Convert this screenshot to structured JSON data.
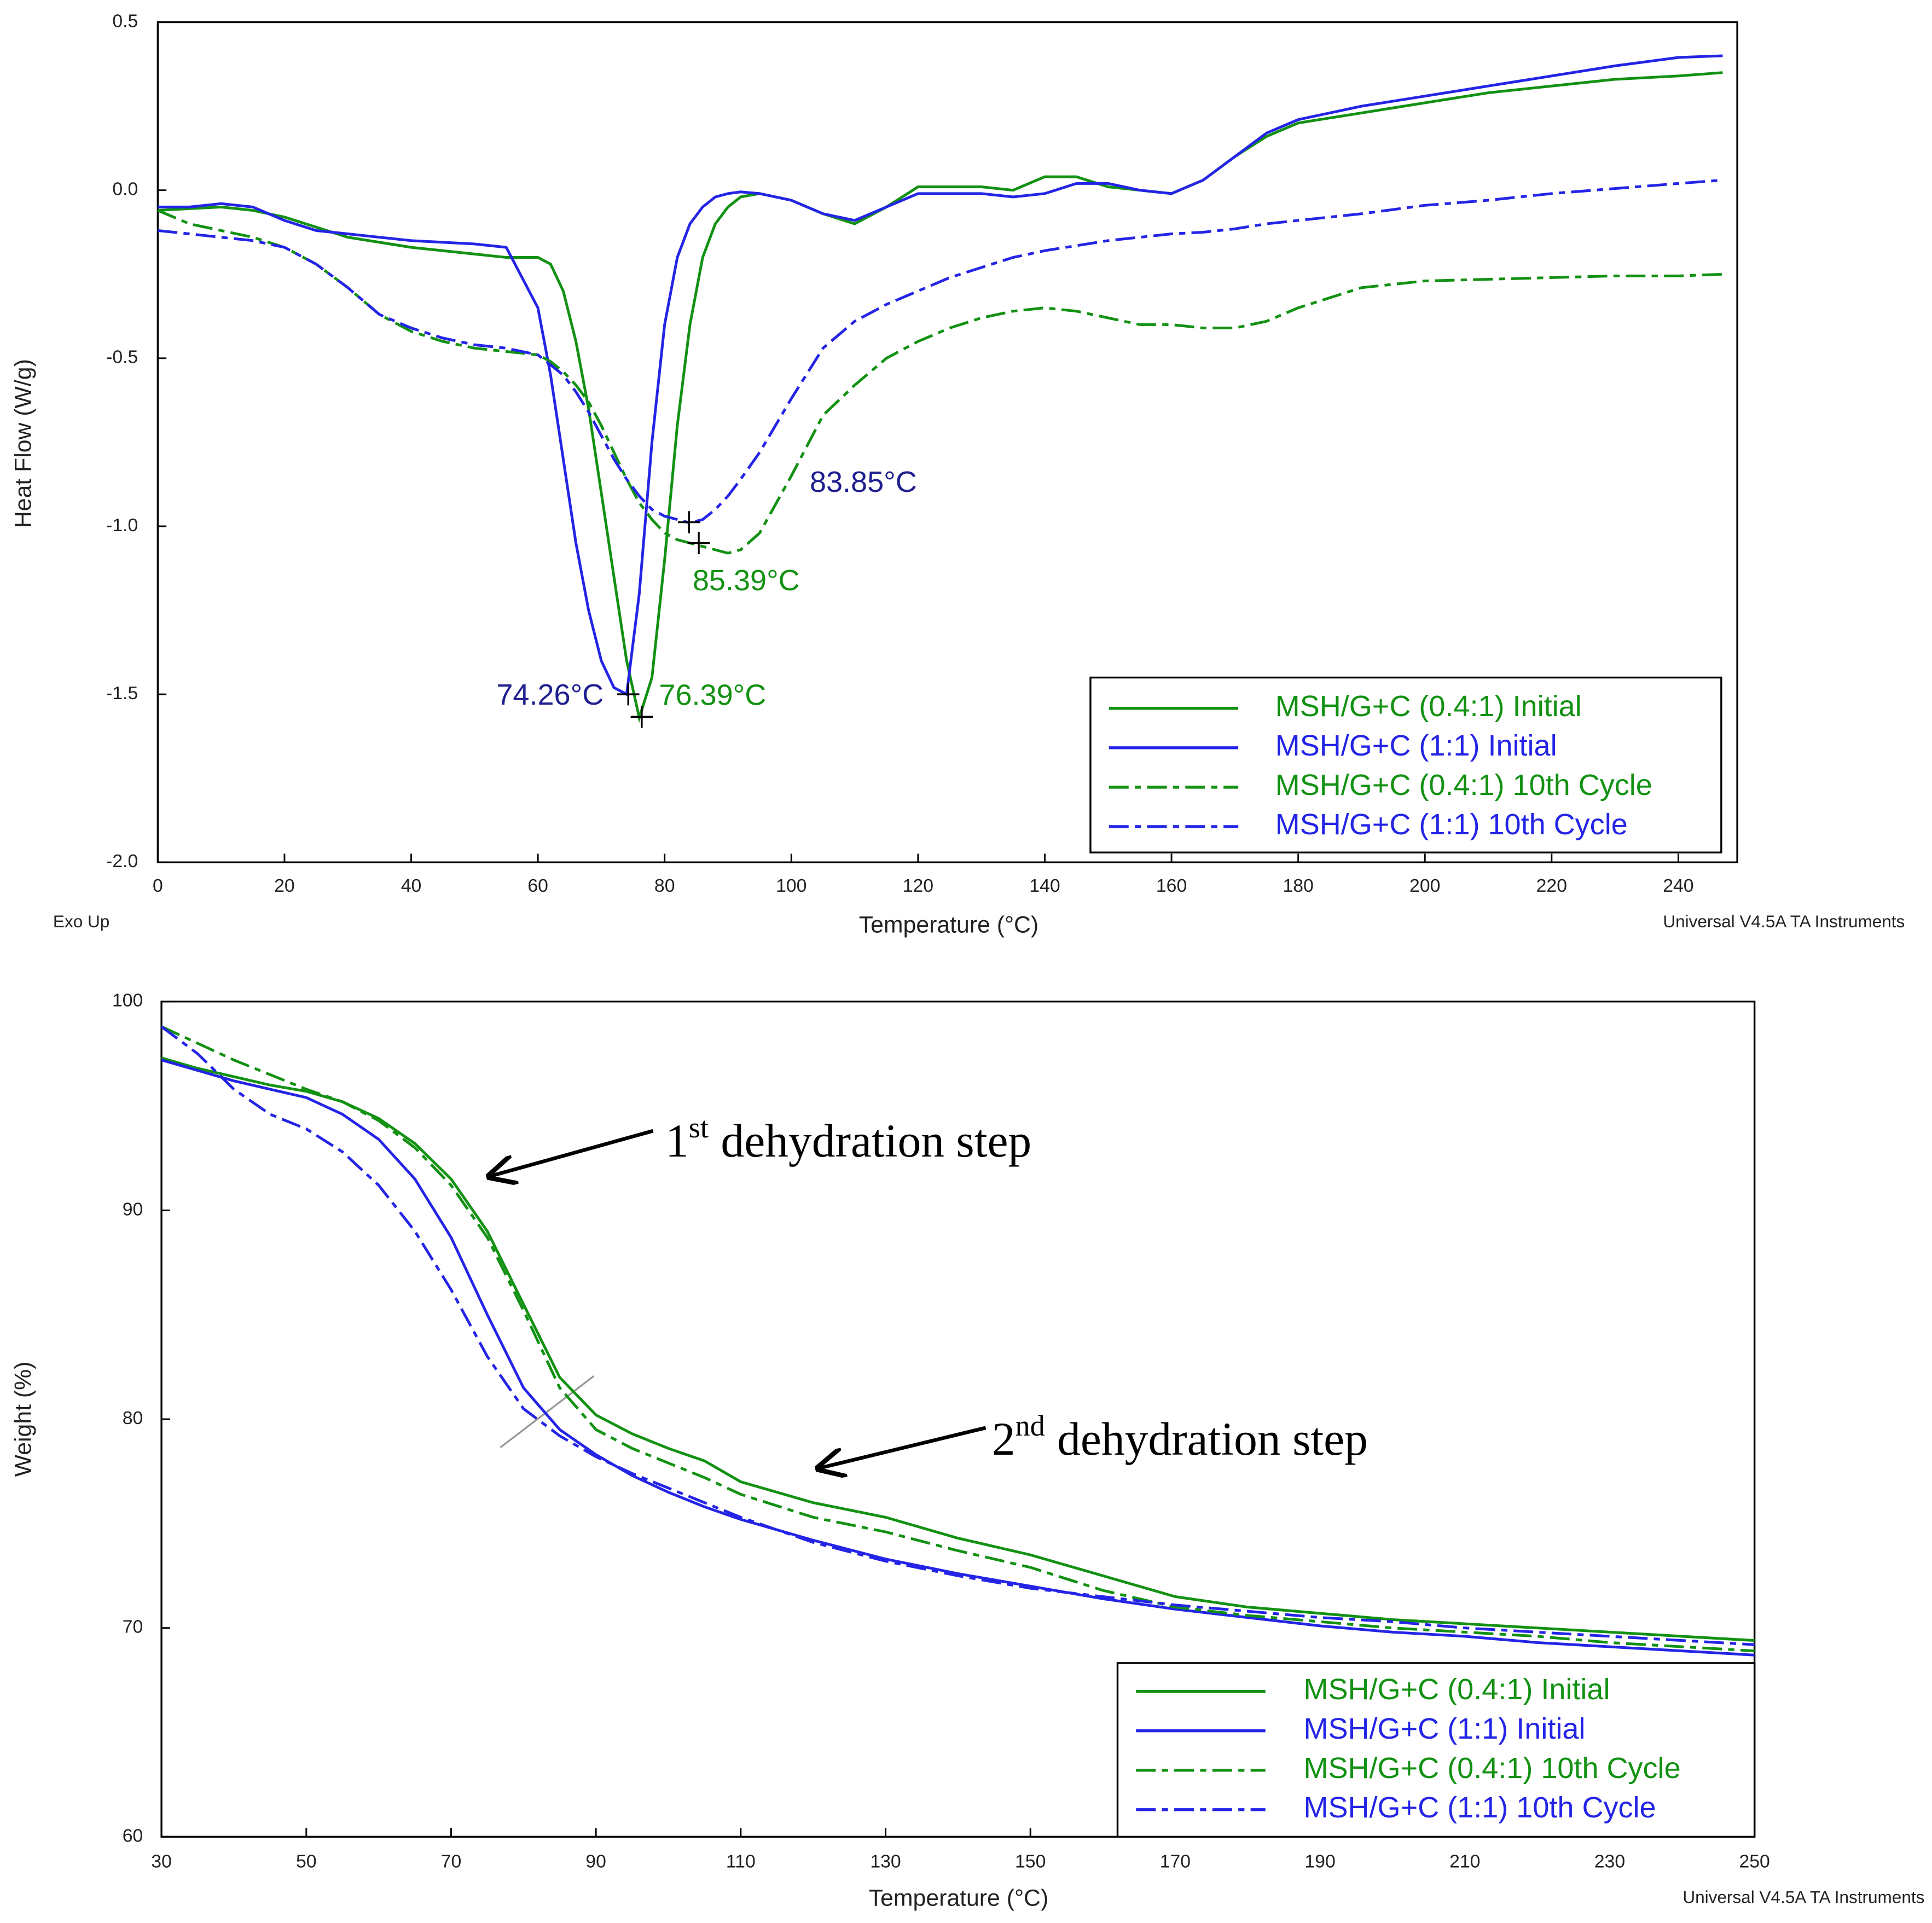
{
  "chart_data": [
    {
      "type": "line",
      "x_label": "Temperature (°C)",
      "y_label": "Heat Flow (W/g)",
      "footer_left": "Exo Up",
      "footer_right": "Universal V4.5A TA Instruments",
      "xlim": [
        0,
        249.3
      ],
      "ylim": [
        -2.0,
        0.5
      ],
      "xticks": [
        0,
        20,
        40,
        60,
        80,
        100,
        120,
        140,
        160,
        180,
        200,
        220,
        240
      ],
      "yticks": [
        {
          "value": -2,
          "label": "-2.0"
        },
        -1.5,
        {
          "value": -1,
          "label": "-1.0"
        },
        -0.5,
        {
          "value": 0,
          "label": "0.0"
        },
        0.5
      ],
      "legend": "lower right",
      "x": [
        0,
        5,
        10,
        15,
        20,
        25,
        30,
        35,
        40,
        45,
        50,
        55,
        60,
        62,
        64,
        66,
        68,
        70,
        72,
        74,
        76,
        78,
        80,
        82,
        84,
        86,
        88,
        90,
        92,
        95,
        100,
        105,
        110,
        115,
        120,
        125,
        130,
        135,
        140,
        145,
        150,
        155,
        160,
        165,
        170,
        175,
        180,
        190,
        200,
        210,
        220,
        230,
        240,
        247
      ],
      "series": [
        {
          "name": "MSH/G+C (0.4:1) Initial",
          "color": "#129112",
          "dash": "solid",
          "values": [
            -0.06,
            -0.055,
            -0.05,
            -0.06,
            -0.08,
            -0.11,
            -0.14,
            -0.155,
            -0.17,
            -0.18,
            -0.19,
            -0.2,
            -0.2,
            -0.22,
            -0.3,
            -0.45,
            -0.65,
            -0.9,
            -1.15,
            -1.4,
            -1.57,
            -1.45,
            -1.1,
            -0.7,
            -0.4,
            -0.2,
            -0.1,
            -0.05,
            -0.02,
            -0.01,
            -0.03,
            -0.07,
            -0.1,
            -0.05,
            0.01,
            0.01,
            0.01,
            0.0,
            0.04,
            0.04,
            0.01,
            0.0,
            -0.01,
            0.03,
            0.1,
            0.16,
            0.2,
            0.23,
            0.26,
            0.29,
            0.31,
            0.33,
            0.34,
            0.35
          ]
        },
        {
          "name": "MSH/G+C (1:1) Initial",
          "color": "#2424e6",
          "dash": "solid",
          "values": [
            -0.05,
            -0.05,
            -0.04,
            -0.05,
            -0.09,
            -0.12,
            -0.13,
            -0.14,
            -0.15,
            -0.155,
            -0.16,
            -0.17,
            -0.35,
            -0.55,
            -0.8,
            -1.05,
            -1.25,
            -1.4,
            -1.48,
            -1.5,
            -1.2,
            -0.75,
            -0.4,
            -0.2,
            -0.1,
            -0.05,
            -0.02,
            -0.01,
            -0.005,
            -0.01,
            -0.03,
            -0.07,
            -0.09,
            -0.05,
            -0.01,
            -0.01,
            -0.01,
            -0.02,
            -0.01,
            0.02,
            0.02,
            0.0,
            -0.01,
            0.03,
            0.1,
            0.17,
            0.21,
            0.25,
            0.28,
            0.31,
            0.34,
            0.37,
            0.395,
            0.4
          ]
        },
        {
          "name": "MSH/G+C (0.4:1) 10th Cycle",
          "color": "#129112",
          "dash": "dashdot",
          "values": [
            -0.06,
            -0.1,
            -0.12,
            -0.14,
            -0.17,
            -0.22,
            -0.29,
            -0.37,
            -0.42,
            -0.45,
            -0.47,
            -0.48,
            -0.49,
            -0.51,
            -0.54,
            -0.58,
            -0.63,
            -0.7,
            -0.78,
            -0.86,
            -0.93,
            -0.98,
            -1.02,
            -1.04,
            -1.05,
            -1.06,
            -1.07,
            -1.08,
            -1.07,
            -1.02,
            -0.85,
            -0.67,
            -0.58,
            -0.5,
            -0.45,
            -0.41,
            -0.38,
            -0.36,
            -0.35,
            -0.36,
            -0.38,
            -0.4,
            -0.4,
            -0.41,
            -0.41,
            -0.39,
            -0.35,
            -0.29,
            -0.27,
            -0.265,
            -0.26,
            -0.255,
            -0.255,
            -0.25
          ]
        },
        {
          "name": "MSH/G+C (1:1) 10th Cycle",
          "color": "#2424e6",
          "dash": "dashdot",
          "values": [
            -0.12,
            -0.13,
            -0.14,
            -0.15,
            -0.17,
            -0.22,
            -0.29,
            -0.37,
            -0.41,
            -0.44,
            -0.46,
            -0.47,
            -0.49,
            -0.52,
            -0.55,
            -0.6,
            -0.66,
            -0.73,
            -0.8,
            -0.86,
            -0.91,
            -0.95,
            -0.97,
            -0.98,
            -0.99,
            -0.98,
            -0.95,
            -0.91,
            -0.86,
            -0.78,
            -0.62,
            -0.47,
            -0.39,
            -0.34,
            -0.3,
            -0.26,
            -0.23,
            -0.2,
            -0.18,
            -0.165,
            -0.15,
            -0.14,
            -0.13,
            -0.125,
            -0.115,
            -0.1,
            -0.09,
            -0.07,
            -0.045,
            -0.03,
            -0.01,
            0.005,
            0.02,
            0.03
          ]
        }
      ],
      "annotations": [
        {
          "text": "74.26°C",
          "x": 74.26,
          "y": -1.5,
          "color": "#1f1f8f"
        },
        {
          "text": "76.39°C",
          "x": 76.39,
          "y": -1.567,
          "color": "#129112"
        },
        {
          "text": "83.85°C",
          "x": 83.85,
          "y": -0.988,
          "color": "#1f1f8f"
        },
        {
          "text": "85.39°C",
          "x": 85.39,
          "y": -1.05,
          "color": "#129112"
        }
      ]
    },
    {
      "type": "line",
      "x_label": "Temperature (°C)",
      "y_label": "Weight (%)",
      "footer_right": "Universal V4.5A TA Instruments",
      "xlim": [
        30,
        250
      ],
      "ylim": [
        60,
        100
      ],
      "xticks": [
        30,
        50,
        70,
        90,
        110,
        130,
        150,
        170,
        190,
        210,
        230,
        250
      ],
      "yticks": [
        60,
        70,
        80,
        90,
        100
      ],
      "legend": "lower right",
      "x": [
        30,
        35,
        40,
        45,
        50,
        55,
        60,
        65,
        70,
        75,
        80,
        85,
        90,
        95,
        100,
        105,
        110,
        120,
        130,
        140,
        150,
        160,
        170,
        180,
        190,
        200,
        210,
        220,
        230,
        240,
        250
      ],
      "series": [
        {
          "name": "MSH/G+C (0.4:1) Initial",
          "color": "#129112",
          "dash": "solid",
          "values": [
            97.3,
            96.8,
            96.4,
            96.0,
            95.7,
            95.2,
            94.4,
            93.2,
            91.5,
            89.0,
            85.5,
            82.0,
            80.2,
            79.3,
            78.6,
            78.0,
            77.0,
            76.0,
            75.3,
            74.3,
            73.5,
            72.5,
            71.5,
            71.0,
            70.7,
            70.4,
            70.2,
            70.0,
            69.8,
            69.6,
            69.4
          ]
        },
        {
          "name": "MSH/G+C (1:1) Initial",
          "color": "#2424e6",
          "dash": "solid",
          "values": [
            97.2,
            96.7,
            96.2,
            95.8,
            95.4,
            94.6,
            93.4,
            91.5,
            88.7,
            85.0,
            81.5,
            79.5,
            78.3,
            77.3,
            76.5,
            75.8,
            75.2,
            74.2,
            73.3,
            72.6,
            72.0,
            71.4,
            70.9,
            70.5,
            70.1,
            69.8,
            69.6,
            69.3,
            69.1,
            68.9,
            68.7
          ]
        },
        {
          "name": "MSH/G+C (0.4:1) 10th Cycle",
          "color": "#129112",
          "dash": "dashdot",
          "values": [
            98.8,
            98.0,
            97.2,
            96.5,
            95.8,
            95.2,
            94.3,
            93.0,
            91.2,
            88.7,
            85.2,
            81.5,
            79.5,
            78.6,
            77.9,
            77.2,
            76.4,
            75.3,
            74.6,
            73.7,
            72.9,
            71.8,
            71.0,
            70.6,
            70.3,
            70.0,
            69.8,
            69.6,
            69.3,
            69.1,
            68.9
          ]
        },
        {
          "name": "MSH/G+C (1:1) 10th Cycle",
          "color": "#2424e6",
          "dash": "dashdot",
          "values": [
            98.8,
            97.5,
            95.8,
            94.6,
            93.9,
            92.8,
            91.2,
            89.0,
            86.2,
            83.0,
            80.5,
            79.2,
            78.2,
            77.4,
            76.7,
            76.0,
            75.3,
            74.1,
            73.2,
            72.5,
            71.9,
            71.5,
            71.1,
            70.8,
            70.5,
            70.3,
            70.0,
            69.8,
            69.6,
            69.4,
            69.2
          ]
        }
      ],
      "annotations": [
        {
          "text": [
            "1",
            "st",
            "dehydration step"
          ]
        },
        {
          "text": [
            "2",
            "nd",
            "dehydration step"
          ]
        }
      ]
    }
  ]
}
